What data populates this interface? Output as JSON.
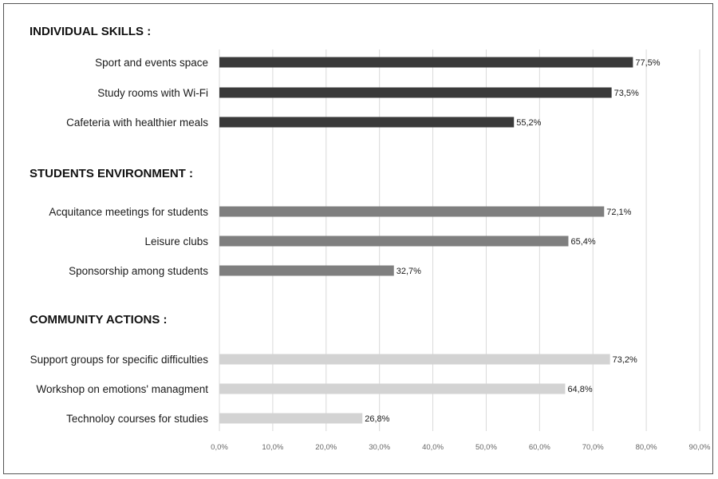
{
  "chart_data": {
    "type": "bar",
    "orientation": "horizontal",
    "xlim": [
      0,
      90
    ],
    "x_ticks": [
      "0,0%",
      "10,0%",
      "20,0%",
      "30,0%",
      "40,0%",
      "50,0%",
      "60,0%",
      "70,0%",
      "80,0%",
      "90,0%"
    ],
    "grid": "vertical",
    "groups": [
      {
        "title": "INDIVIDUAL SKILLS :",
        "color": "#3a3a3a",
        "items": [
          {
            "label": "Sport and events space",
            "value": 77.5,
            "value_label": "77,5%"
          },
          {
            "label": "Study rooms with Wi-Fi",
            "value": 73.5,
            "value_label": "73,5%"
          },
          {
            "label": "Cafeteria with healthier meals",
            "value": 55.2,
            "value_label": "55,2%"
          }
        ]
      },
      {
        "title": "STUDENTS ENVIRONMENT :",
        "color": "#7f7f7f",
        "items": [
          {
            "label": "Acquitance meetings for students",
            "value": 72.1,
            "value_label": "72,1%"
          },
          {
            "label": "Leisure clubs",
            "value": 65.4,
            "value_label": "65,4%"
          },
          {
            "label": "Sponsorship among students",
            "value": 32.7,
            "value_label": "32,7%"
          }
        ]
      },
      {
        "title": "COMMUNITY ACTIONS :",
        "color": "#d3d3d3",
        "items": [
          {
            "label": "Support groups for specific difficulties",
            "value": 73.2,
            "value_label": "73,2%"
          },
          {
            "label": "Workshop on emotions' managment",
            "value": 64.8,
            "value_label": "64,8%"
          },
          {
            "label": "Technoloy courses for studies",
            "value": 26.8,
            "value_label": "26,8%"
          }
        ]
      }
    ]
  }
}
